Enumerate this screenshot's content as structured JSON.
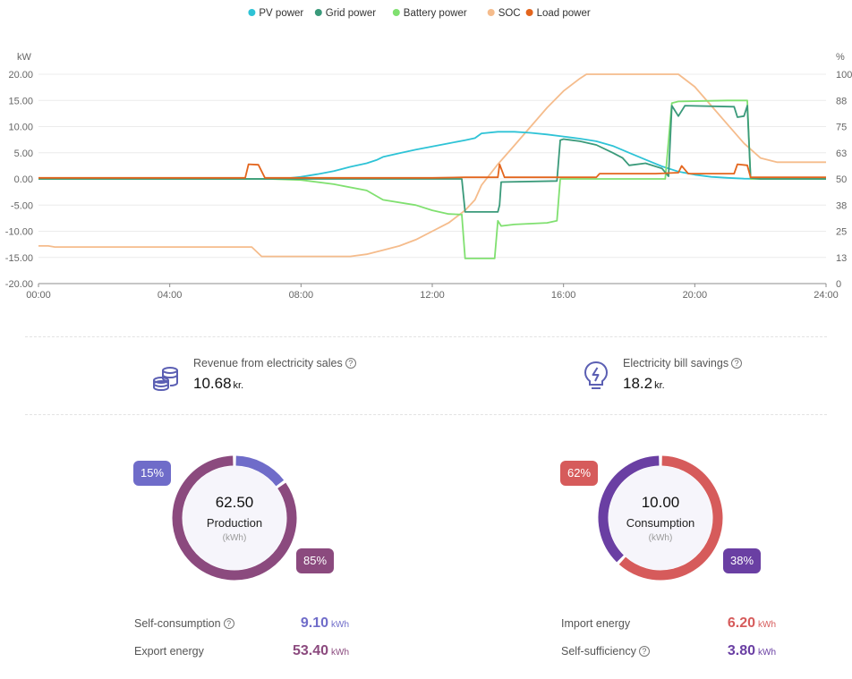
{
  "chart_data": {
    "type": "line",
    "legend_position": "top",
    "x_ticks": [
      "00:00",
      "04:00",
      "08:00",
      "12:00",
      "16:00",
      "20:00",
      "24:00"
    ],
    "xlim": [
      0,
      24
    ],
    "y_left": {
      "unit": "kW",
      "ticks": [
        "20.00",
        "15.00",
        "10.00",
        "5.00",
        "0.00",
        "-5.00",
        "-10.00",
        "-15.00",
        "-20.00"
      ],
      "lim": [
        -20,
        20
      ]
    },
    "y_right": {
      "unit": "%",
      "ticks": [
        "100",
        "88",
        "75",
        "63",
        "50",
        "38",
        "25",
        "13",
        "0"
      ],
      "lim": [
        0,
        100
      ]
    },
    "grid": true,
    "series": [
      {
        "name": "PV power",
        "color": "#2ec3d6",
        "axis": "left",
        "points": [
          [
            0,
            0
          ],
          [
            7,
            0
          ],
          [
            7.5,
            0.05
          ],
          [
            8,
            0.4
          ],
          [
            8.5,
            0.9
          ],
          [
            9,
            1.5
          ],
          [
            9.5,
            2.3
          ],
          [
            10,
            3.0
          ],
          [
            10.3,
            3.6
          ],
          [
            10.5,
            4.2
          ],
          [
            11,
            4.9
          ],
          [
            11.5,
            5.6
          ],
          [
            12,
            6.2
          ],
          [
            12.5,
            6.8
          ],
          [
            13,
            7.4
          ],
          [
            13.3,
            7.8
          ],
          [
            13.5,
            8.7
          ],
          [
            14,
            9.0
          ],
          [
            14.5,
            9.0
          ],
          [
            15,
            8.8
          ],
          [
            15.5,
            8.5
          ],
          [
            16,
            8.1
          ],
          [
            16.5,
            7.7
          ],
          [
            17,
            7.2
          ],
          [
            17.5,
            6.3
          ],
          [
            18,
            5.0
          ],
          [
            18.5,
            3.7
          ],
          [
            19,
            2.4
          ],
          [
            19.5,
            1.4
          ],
          [
            20,
            0.8
          ],
          [
            20.5,
            0.4
          ],
          [
            21,
            0.2
          ],
          [
            21.5,
            0.05
          ],
          [
            22,
            0
          ],
          [
            24,
            0
          ]
        ]
      },
      {
        "name": "Grid power",
        "color": "#3a9a7a",
        "axis": "left",
        "points": [
          [
            0,
            0
          ],
          [
            12.9,
            0
          ],
          [
            13,
            -6.3
          ],
          [
            13.9,
            -6.3
          ],
          [
            14,
            -6.3
          ],
          [
            14.05,
            -5.0
          ],
          [
            14.1,
            -0.6
          ],
          [
            15.8,
            -0.4
          ],
          [
            15.9,
            7.4
          ],
          [
            16,
            7.6
          ],
          [
            16.5,
            7.2
          ],
          [
            17,
            6.5
          ],
          [
            17.5,
            5.0
          ],
          [
            17.8,
            4.0
          ],
          [
            18,
            2.6
          ],
          [
            18.5,
            3.0
          ],
          [
            19,
            2.0
          ],
          [
            19.2,
            0.5
          ],
          [
            19.3,
            14.0
          ],
          [
            19.5,
            12.0
          ],
          [
            19.7,
            14.0
          ],
          [
            21.2,
            13.8
          ],
          [
            21.3,
            11.8
          ],
          [
            21.5,
            12.0
          ],
          [
            21.6,
            14.0
          ],
          [
            21.7,
            0.2
          ],
          [
            22,
            0
          ],
          [
            24,
            0
          ]
        ]
      },
      {
        "name": "Battery power",
        "color": "#80e070",
        "axis": "left",
        "points": [
          [
            0,
            0
          ],
          [
            7,
            0
          ],
          [
            8,
            -0.2
          ],
          [
            9,
            -1.0
          ],
          [
            10,
            -2.2
          ],
          [
            10.5,
            -4.0
          ],
          [
            11.5,
            -5.0
          ],
          [
            12,
            -6.0
          ],
          [
            12.5,
            -6.7
          ],
          [
            12.9,
            -6.8
          ],
          [
            13,
            -15.2
          ],
          [
            13.9,
            -15.2
          ],
          [
            14,
            -8.0
          ],
          [
            14.1,
            -9.0
          ],
          [
            14.5,
            -8.7
          ],
          [
            15.5,
            -8.4
          ],
          [
            15.8,
            -8.0
          ],
          [
            15.9,
            0
          ],
          [
            19.1,
            0
          ],
          [
            19.3,
            14.5
          ],
          [
            19.5,
            14.8
          ],
          [
            21,
            15.0
          ],
          [
            21.6,
            15.0
          ],
          [
            21.7,
            0
          ],
          [
            24,
            0
          ]
        ]
      },
      {
        "name": "SOC",
        "color": "#f5bc8c",
        "axis": "right",
        "points": [
          [
            0,
            18
          ],
          [
            0.3,
            18
          ],
          [
            0.5,
            17.5
          ],
          [
            6.5,
            17.5
          ],
          [
            6.8,
            13
          ],
          [
            9.5,
            13
          ],
          [
            10,
            14
          ],
          [
            10.5,
            16
          ],
          [
            11,
            18
          ],
          [
            11.5,
            21
          ],
          [
            12,
            25
          ],
          [
            12.5,
            29
          ],
          [
            13,
            35
          ],
          [
            13.3,
            40
          ],
          [
            13.5,
            47
          ],
          [
            14,
            57
          ],
          [
            14.5,
            66
          ],
          [
            15,
            75
          ],
          [
            15.5,
            84
          ],
          [
            16,
            92
          ],
          [
            16.5,
            98
          ],
          [
            16.7,
            100
          ],
          [
            19.5,
            100
          ],
          [
            20,
            94
          ],
          [
            20.5,
            85
          ],
          [
            21,
            76
          ],
          [
            21.5,
            67
          ],
          [
            22,
            60
          ],
          [
            22.5,
            58
          ],
          [
            24,
            58
          ]
        ]
      },
      {
        "name": "Load power",
        "color": "#e3651d",
        "axis": "left",
        "points": [
          [
            0,
            0.2
          ],
          [
            6.3,
            0.2
          ],
          [
            6.4,
            2.8
          ],
          [
            6.7,
            2.7
          ],
          [
            6.9,
            0.2
          ],
          [
            12,
            0.2
          ],
          [
            13,
            0.3
          ],
          [
            14,
            0.3
          ],
          [
            14.05,
            2.8
          ],
          [
            14.2,
            0.3
          ],
          [
            17,
            0.3
          ],
          [
            17.1,
            1.0
          ],
          [
            18.8,
            1.0
          ],
          [
            19.5,
            1.2
          ],
          [
            19.6,
            2.5
          ],
          [
            19.8,
            1.0
          ],
          [
            21.2,
            1.0
          ],
          [
            21.3,
            2.8
          ],
          [
            21.6,
            2.6
          ],
          [
            21.7,
            0.3
          ],
          [
            24,
            0.3
          ]
        ]
      }
    ]
  },
  "revenue": {
    "label": "Revenue from electricity sales",
    "value": "10.68",
    "unit": "kr."
  },
  "savings": {
    "label": "Electricity bill savings",
    "value": "18.2",
    "unit": "kr."
  },
  "production": {
    "total": "62.50",
    "name": "Production",
    "unit": "(kWh)",
    "self_pct_label": "15%",
    "export_pct_label": "85%",
    "self_fraction": 0.15,
    "colors": {
      "self": "#6f6cc9",
      "export": "#8b4a7e"
    },
    "self_consumption": {
      "label": "Self-consumption",
      "value": "9.10",
      "unit": "kWh"
    },
    "export_energy": {
      "label": "Export energy",
      "value": "53.40",
      "unit": "kWh"
    }
  },
  "consumption": {
    "total": "10.00",
    "name": "Consumption",
    "unit": "(kWh)",
    "import_pct_label": "62%",
    "self_pct_label": "38%",
    "import_fraction": 0.62,
    "colors": {
      "import": "#d65b5b",
      "self": "#6a3fa3"
    },
    "import_energy": {
      "label": "Import energy",
      "value": "6.20",
      "unit": "kWh"
    },
    "self_sufficiency": {
      "label": "Self-sufficiency",
      "value": "3.80",
      "unit": "kWh"
    }
  }
}
